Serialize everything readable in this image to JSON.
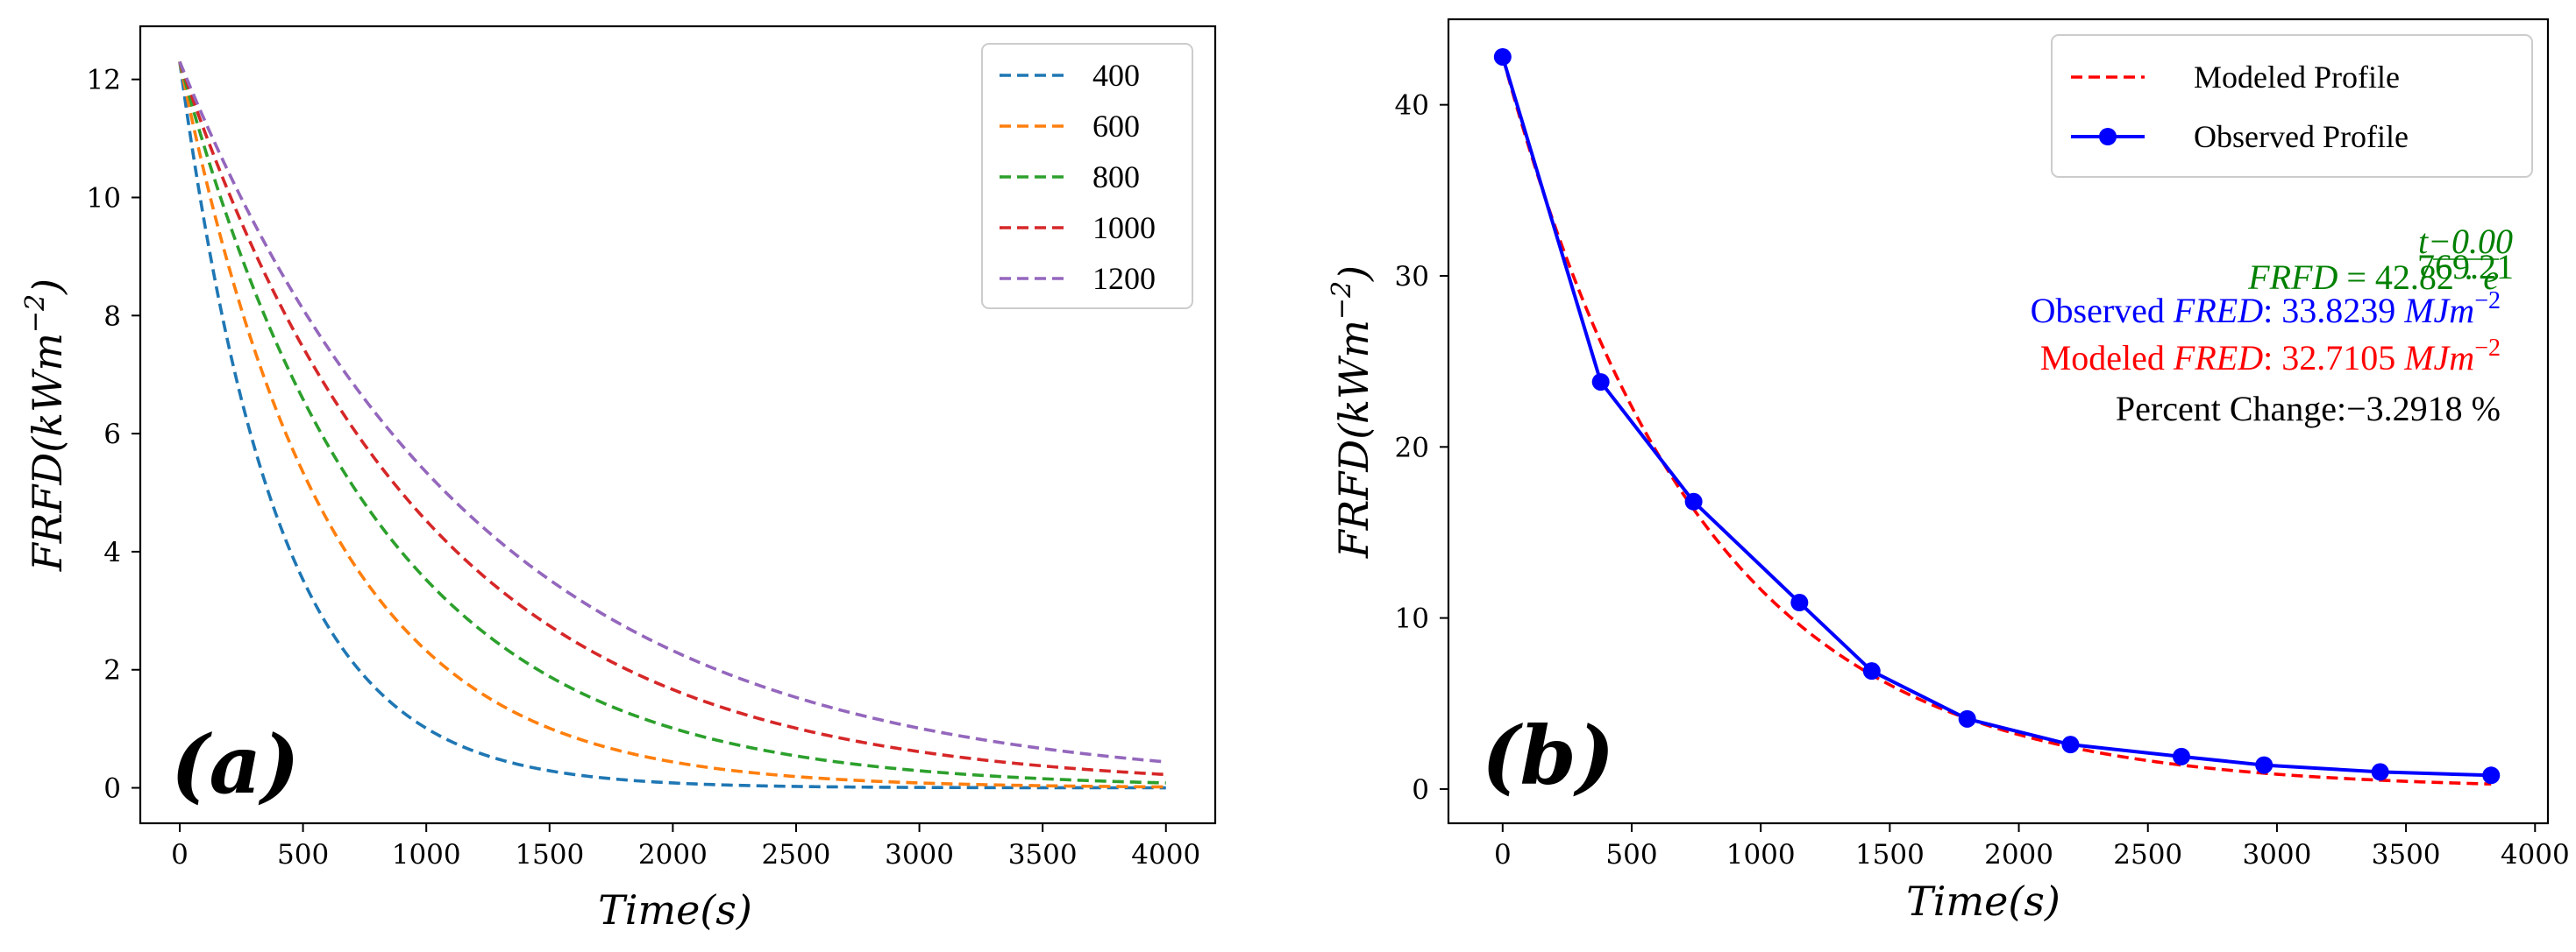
{
  "chart_data": [
    {
      "type": "line",
      "panel_label": "(a)",
      "xlabel": "Time(s)",
      "ylabel": "FRFD(kWm^-2)",
      "ylabel_main": "FRFD(kWm",
      "ylabel_exp": "−2",
      "xlim": [
        -160,
        4200
      ],
      "ylim": [
        -0.6,
        12.9
      ],
      "xticks": [
        0,
        500,
        1000,
        1500,
        2000,
        2500,
        3000,
        3500,
        4000
      ],
      "yticks": [
        0,
        2,
        4,
        6,
        8,
        10,
        12
      ],
      "legend_position": "top-right",
      "grid": false,
      "series": [
        {
          "name": "400",
          "color": "#1f77b4",
          "initial": 12.3,
          "tau": 400
        },
        {
          "name": "600",
          "color": "#ff7f0e",
          "initial": 12.3,
          "tau": 600
        },
        {
          "name": "800",
          "color": "#2ca02c",
          "initial": 12.3,
          "tau": 800
        },
        {
          "name": "1000",
          "color": "#d62728",
          "initial": 12.3,
          "tau": 1000
        },
        {
          "name": "1200",
          "color": "#9467bd",
          "initial": 12.3,
          "tau": 1200
        }
      ],
      "x_range": [
        0,
        4000
      ]
    },
    {
      "type": "line",
      "panel_label": "(b)",
      "xlabel": "Time(s)",
      "ylabel": "FRFD(kWm^-2)",
      "ylabel_main": "FRFD(kWm",
      "ylabel_exp": "−2",
      "xlim": [
        -210,
        4050
      ],
      "ylim": [
        -2.0,
        45.0
      ],
      "xticks": [
        0,
        500,
        1000,
        1500,
        2000,
        2500,
        3000,
        3500,
        4000
      ],
      "yticks": [
        0,
        10,
        20,
        30,
        40
      ],
      "legend_position": "top-right",
      "grid": false,
      "series": [
        {
          "name": "Modeled Profile",
          "color": "#ff0000",
          "style": "dashed",
          "initial": 42.82,
          "tau": 769.21
        },
        {
          "name": "Observed Profile",
          "color": "#0000ff",
          "style": "solid-marker",
          "x": [
            0,
            380,
            740,
            1150,
            1430,
            1800,
            2200,
            2630,
            2950,
            3400,
            3830
          ],
          "y": [
            42.8,
            23.8,
            16.8,
            10.9,
            6.9,
            4.1,
            2.6,
            1.9,
            1.4,
            1.0,
            0.8
          ]
        }
      ],
      "x_range": [
        0,
        3830
      ],
      "annotations": {
        "equation_lhs": "FRFD",
        "equation_mid": " = 42.82 · ",
        "equation_base": "e",
        "equation_num": "t−0.00",
        "equation_den": "769.21",
        "observed_prefix": "Observed ",
        "observed_var": "FRED",
        "observed_value": ": 33.8239 ",
        "observed_unit": "MJm",
        "observed_exp": "−2",
        "modeled_prefix": "Modeled ",
        "modeled_var": "FRED",
        "modeled_value": ": 32.7105 ",
        "modeled_unit": "MJm",
        "modeled_exp": "−2",
        "percent_text": "Percent Change:−3.2918 %",
        "color_equation": "#008000",
        "color_observed": "#0000ff",
        "color_modeled": "#ff0000",
        "color_percent": "#000000"
      }
    }
  ]
}
